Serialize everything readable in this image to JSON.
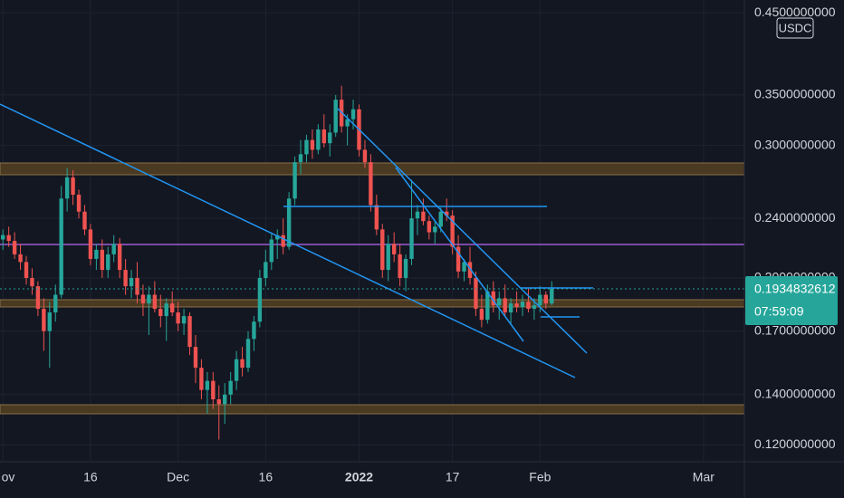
{
  "chart_data": {
    "type": "candlestick",
    "badge": "USDC",
    "last_price": {
      "value": 0.1934832612,
      "label": "0.1934832612"
    },
    "countdown": "07:59:09",
    "up_color": "#26a69a",
    "down_color": "#ef5350",
    "log_scale": true,
    "grid": true,
    "x": [
      0,
      1,
      2,
      3,
      4,
      5,
      6,
      7,
      8,
      9,
      10,
      11,
      12,
      13,
      14,
      15,
      16,
      17,
      18,
      19,
      20,
      21,
      22,
      23,
      24,
      25,
      26,
      27,
      28,
      29,
      30,
      31,
      32,
      33,
      34,
      35,
      36,
      37,
      38,
      39,
      40,
      41,
      42,
      43,
      44,
      45,
      46,
      47,
      48,
      49,
      50,
      51,
      52,
      53,
      54,
      55,
      56,
      57,
      58,
      59,
      60,
      61,
      62,
      63,
      64,
      65,
      66,
      67,
      68,
      69,
      70,
      71,
      72,
      73,
      74,
      75,
      76,
      77,
      78,
      79,
      80,
      81,
      82,
      83,
      84,
      85,
      86,
      87,
      88,
      89,
      90,
      91,
      92,
      93,
      94
    ],
    "open": [
      0.225,
      0.228,
      0.224,
      0.215,
      0.21,
      0.2,
      0.195,
      0.182,
      0.17,
      0.18,
      0.19,
      0.255,
      0.272,
      0.258,
      0.245,
      0.232,
      0.212,
      0.218,
      0.205,
      0.215,
      0.222,
      0.205,
      0.195,
      0.2,
      0.19,
      0.185,
      0.19,
      0.182,
      0.178,
      0.185,
      0.18,
      0.174,
      0.178,
      0.162,
      0.152,
      0.142,
      0.146,
      0.138,
      0.136,
      0.14,
      0.146,
      0.156,
      0.152,
      0.166,
      0.175,
      0.2,
      0.21,
      0.225,
      0.228,
      0.22,
      0.255,
      0.285,
      0.292,
      0.305,
      0.296,
      0.315,
      0.302,
      0.312,
      0.345,
      0.318,
      0.325,
      0.335,
      0.296,
      0.285,
      0.25,
      0.232,
      0.205,
      0.222,
      0.215,
      0.2,
      0.212,
      0.24,
      0.245,
      0.238,
      0.23,
      0.234,
      0.245,
      0.242,
      0.22,
      0.204,
      0.21,
      0.2,
      0.182,
      0.176,
      0.192,
      0.184,
      0.188,
      0.18,
      0.185,
      0.183,
      0.186,
      0.182,
      0.184,
      0.19,
      0.185
    ],
    "high": [
      0.232,
      0.234,
      0.23,
      0.222,
      0.214,
      0.206,
      0.198,
      0.188,
      0.186,
      0.196,
      0.265,
      0.28,
      0.278,
      0.262,
      0.25,
      0.236,
      0.222,
      0.225,
      0.22,
      0.228,
      0.226,
      0.212,
      0.205,
      0.21,
      0.196,
      0.195,
      0.198,
      0.19,
      0.188,
      0.192,
      0.186,
      0.182,
      0.18,
      0.168,
      0.156,
      0.15,
      0.15,
      0.144,
      0.145,
      0.15,
      0.16,
      0.162,
      0.17,
      0.178,
      0.205,
      0.218,
      0.23,
      0.232,
      0.24,
      0.26,
      0.29,
      0.305,
      0.31,
      0.315,
      0.32,
      0.33,
      0.32,
      0.35,
      0.36,
      0.33,
      0.345,
      0.34,
      0.305,
      0.292,
      0.258,
      0.236,
      0.228,
      0.23,
      0.222,
      0.215,
      0.27,
      0.25,
      0.255,
      0.242,
      0.238,
      0.248,
      0.255,
      0.246,
      0.228,
      0.212,
      0.22,
      0.204,
      0.19,
      0.196,
      0.198,
      0.192,
      0.196,
      0.188,
      0.192,
      0.19,
      0.194,
      0.188,
      0.195,
      0.192,
      0.198
    ],
    "low": [
      0.218,
      0.22,
      0.212,
      0.205,
      0.196,
      0.19,
      0.178,
      0.16,
      0.152,
      0.175,
      0.188,
      0.245,
      0.25,
      0.24,
      0.228,
      0.208,
      0.205,
      0.2,
      0.2,
      0.21,
      0.2,
      0.19,
      0.188,
      0.185,
      0.178,
      0.168,
      0.18,
      0.172,
      0.165,
      0.178,
      0.17,
      0.168,
      0.158,
      0.145,
      0.138,
      0.132,
      0.134,
      0.122,
      0.128,
      0.136,
      0.142,
      0.148,
      0.15,
      0.16,
      0.172,
      0.195,
      0.205,
      0.212,
      0.215,
      0.218,
      0.25,
      0.275,
      0.285,
      0.288,
      0.292,
      0.298,
      0.29,
      0.308,
      0.312,
      0.3,
      0.315,
      0.29,
      0.28,
      0.245,
      0.228,
      0.2,
      0.198,
      0.21,
      0.195,
      0.192,
      0.208,
      0.228,
      0.235,
      0.225,
      0.222,
      0.23,
      0.238,
      0.215,
      0.2,
      0.198,
      0.196,
      0.178,
      0.172,
      0.174,
      0.18,
      0.176,
      0.178,
      0.174,
      0.18,
      0.178,
      0.18,
      0.176,
      0.18,
      0.182,
      0.184
    ],
    "close": [
      0.228,
      0.224,
      0.215,
      0.21,
      0.2,
      0.195,
      0.182,
      0.17,
      0.18,
      0.19,
      0.255,
      0.272,
      0.258,
      0.245,
      0.232,
      0.212,
      0.218,
      0.205,
      0.215,
      0.222,
      0.205,
      0.195,
      0.2,
      0.19,
      0.185,
      0.19,
      0.182,
      0.178,
      0.185,
      0.18,
      0.174,
      0.178,
      0.162,
      0.152,
      0.142,
      0.146,
      0.138,
      0.136,
      0.14,
      0.146,
      0.156,
      0.152,
      0.166,
      0.175,
      0.2,
      0.21,
      0.225,
      0.228,
      0.22,
      0.255,
      0.285,
      0.292,
      0.305,
      0.296,
      0.315,
      0.302,
      0.312,
      0.345,
      0.318,
      0.325,
      0.335,
      0.296,
      0.285,
      0.25,
      0.232,
      0.205,
      0.222,
      0.215,
      0.2,
      0.212,
      0.24,
      0.245,
      0.238,
      0.23,
      0.234,
      0.245,
      0.242,
      0.22,
      0.204,
      0.21,
      0.2,
      0.182,
      0.176,
      0.192,
      0.184,
      0.188,
      0.18,
      0.185,
      0.183,
      0.186,
      0.182,
      0.184,
      0.19,
      0.185,
      0.1935
    ],
    "xlim": [
      -0.5,
      127
    ],
    "xticks": [
      {
        "value": 0,
        "label": "ov"
      },
      {
        "value": 15,
        "label": "16"
      },
      {
        "value": 30,
        "label": "Dec"
      },
      {
        "value": 45,
        "label": "16"
      },
      {
        "value": 61,
        "label": "2022"
      },
      {
        "value": 77,
        "label": "17"
      },
      {
        "value": 92,
        "label": "Feb"
      },
      {
        "value": 120,
        "label": "Mar"
      }
    ],
    "ylim": [
      0.114,
      0.468
    ],
    "yticks": [
      {
        "value": 0.45,
        "label": "0.4500000000"
      },
      {
        "value": 0.35,
        "label": "0.3500000000"
      },
      {
        "value": 0.3,
        "label": "0.3000000000"
      },
      {
        "value": 0.24,
        "label": "0.2400000000"
      },
      {
        "value": 0.2,
        "label": "0.2000000000"
      },
      {
        "value": 0.17,
        "label": "0.1700000000"
      },
      {
        "value": 0.14,
        "label": "0.1400000000"
      },
      {
        "value": 0.12,
        "label": "0.1200000000"
      }
    ]
  }
}
